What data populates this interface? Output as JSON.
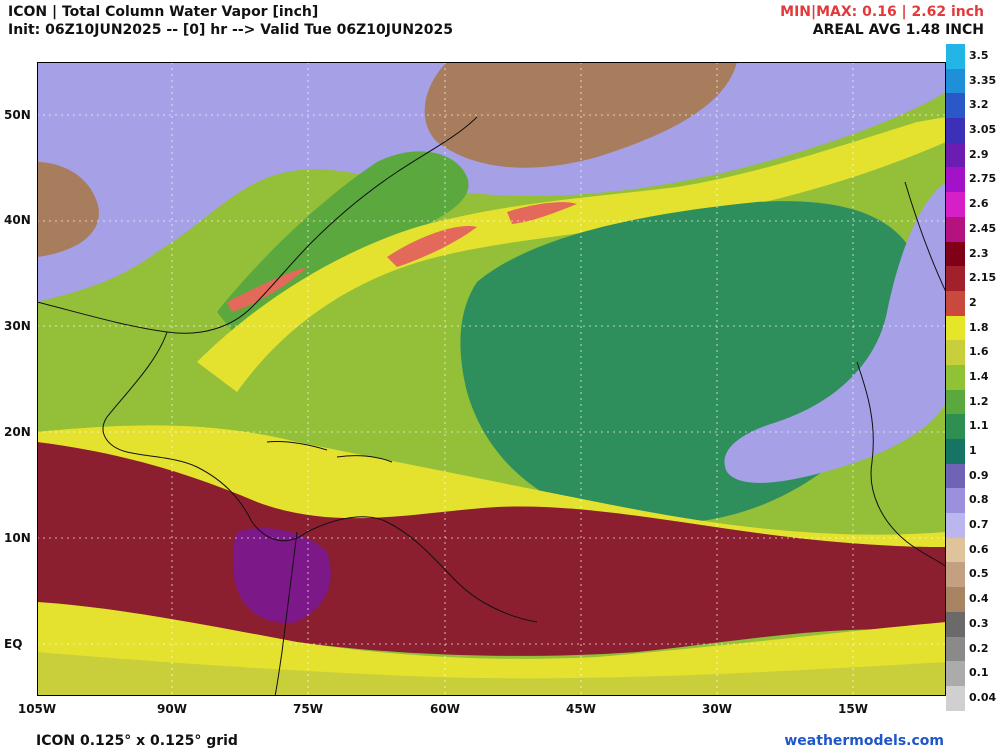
{
  "header": {
    "title": "ICON | Total Column Water Vapor [inch]",
    "subtitle": "Init: 06Z10JUN2025 -- [0] hr --> Valid Tue 06Z10JUN2025",
    "minmax": "MIN|MAX: 0.16 | 2.62 inch",
    "areal_avg": "AREAL AVG 1.48 INCH"
  },
  "axes": {
    "lat_labels": [
      "50N",
      "40N",
      "30N",
      "20N",
      "10N",
      "EQ"
    ],
    "lon_labels": [
      "105W",
      "90W",
      "75W",
      "60W",
      "45W",
      "30W",
      "15W"
    ]
  },
  "colorbar": {
    "labels": [
      "3.5",
      "3.35",
      "3.2",
      "3.05",
      "2.9",
      "2.75",
      "2.6",
      "2.45",
      "2.3",
      "2.15",
      "2",
      "1.8",
      "1.6",
      "1.4",
      "1.2",
      "1.1",
      "1",
      "0.9",
      "0.8",
      "0.7",
      "0.6",
      "0.5",
      "0.4",
      "0.3",
      "0.2",
      "0.1",
      "0.04"
    ],
    "colors": [
      "#22b5e6",
      "#1f8fd8",
      "#2a58c8",
      "#3c2fb8",
      "#6a1db0",
      "#a312c8",
      "#d71fc8",
      "#b5127f",
      "#800018",
      "#a2202b",
      "#c9493c",
      "#e6e628",
      "#c9cf3a",
      "#90c236",
      "#5aa83e",
      "#2f8e52",
      "#157463",
      "#6f63b8",
      "#9a90dd",
      "#bcb6ee",
      "#dfc39a",
      "#c2a080",
      "#a88462",
      "#6a6a6a",
      "#8a8a8a",
      "#ababab",
      "#d0d0d0"
    ]
  },
  "footer": {
    "grid": "ICON 0.125° x 0.125° grid",
    "source": "weathermodels.com"
  },
  "map_colors": {
    "ocean_mid": "#93bf39",
    "tropical_moist": "#8b1f2f",
    "very_moist": "#7c1888",
    "dry_north": "#a77d5e",
    "dry_lavender": "#a6a0e6",
    "yellow_band": "#e4e22f",
    "green_core": "#2e8f5d",
    "salmon": "#e3695a"
  }
}
